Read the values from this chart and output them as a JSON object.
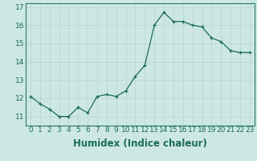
{
  "x": [
    0,
    1,
    2,
    3,
    4,
    5,
    6,
    7,
    8,
    9,
    10,
    11,
    12,
    13,
    14,
    15,
    16,
    17,
    18,
    19,
    20,
    21,
    22,
    23
  ],
  "y": [
    12.1,
    11.7,
    11.4,
    11.0,
    11.0,
    11.5,
    11.2,
    12.1,
    12.2,
    12.1,
    12.4,
    13.2,
    13.8,
    16.0,
    16.7,
    16.2,
    16.2,
    16.0,
    15.9,
    15.3,
    15.1,
    14.6,
    14.5,
    14.5
  ],
  "xlabel": "Humidex (Indice chaleur)",
  "ylim": [
    10.5,
    17.2
  ],
  "xlim": [
    -0.5,
    23.5
  ],
  "yticks": [
    11,
    12,
    13,
    14,
    15,
    16,
    17
  ],
  "xticks": [
    0,
    1,
    2,
    3,
    4,
    5,
    6,
    7,
    8,
    9,
    10,
    11,
    12,
    13,
    14,
    15,
    16,
    17,
    18,
    19,
    20,
    21,
    22,
    23
  ],
  "line_color": "#1a6b5a",
  "marker": "+",
  "marker_size": 3.5,
  "bg_color": "#cde8e2",
  "grid_color": "#b8d8d0",
  "axes_bg": "#cde8e2",
  "fig_bg": "#cde8e2",
  "tick_fontsize": 6.5,
  "xlabel_fontsize": 8.5,
  "spine_color": "#2a7a68"
}
